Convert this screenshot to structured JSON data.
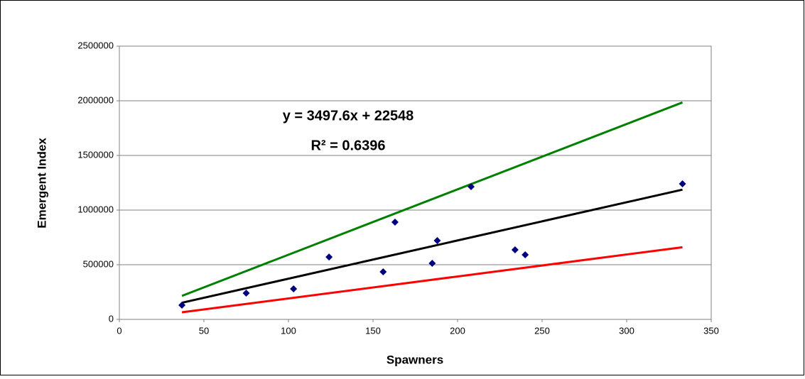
{
  "chart_data": {
    "type": "scatter",
    "x_label": "Spawners",
    "y_label": "Emergent Index",
    "annotations": [
      "y = 3497.6x + 22548",
      "R² = 0.6396"
    ],
    "xlim": [
      0,
      350
    ],
    "xticks": [
      0,
      50,
      100,
      150,
      200,
      250,
      300,
      350
    ],
    "ylim": [
      0,
      2500000
    ],
    "yticks": [
      0,
      500000,
      1000000,
      1500000,
      2000000,
      2500000
    ],
    "grid": true,
    "series": [
      {
        "type": "scatter",
        "color": "#000080",
        "x": [
          37,
          75,
          103,
          124,
          156,
          163,
          185,
          188,
          208,
          234,
          240,
          333
        ],
        "values": [
          130000,
          240000,
          279000,
          571000,
          435000,
          890000,
          513000,
          721000,
          1214000,
          636000,
          591000,
          1240000
        ]
      },
      {
        "type": "line",
        "color": "#000000",
        "x": [
          37,
          333
        ],
        "values": [
          151959,
          1187249
        ]
      },
      {
        "type": "line",
        "color": "#008000",
        "x": [
          37,
          333
        ],
        "values": [
          215000,
          1985000
        ]
      },
      {
        "type": "line",
        "color": "#ff0000",
        "x": [
          37,
          333
        ],
        "values": [
          65000,
          660000
        ]
      }
    ]
  }
}
